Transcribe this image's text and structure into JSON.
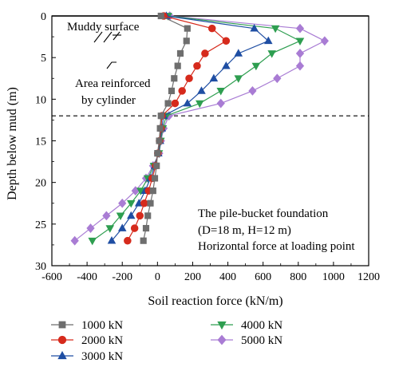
{
  "chart_data": {
    "type": "line",
    "xlabel": "Soil reaction force (kN/m)",
    "ylabel": "Depth below mud (m)",
    "xlim": [
      -600,
      1200
    ],
    "ylim": [
      0,
      30
    ],
    "y_inverted": true,
    "grid": false,
    "x_ticks": [
      -600,
      -400,
      -200,
      0,
      200,
      400,
      600,
      800,
      1000,
      1200
    ],
    "y_ticks": [
      0,
      5,
      10,
      15,
      20,
      25,
      30
    ],
    "legend_position": "bottom",
    "annotations": {
      "muddy_surface": "Muddy surface",
      "reinforced_line1": "Area reinforced",
      "reinforced_line2": "by cylinder",
      "info_line1": "The pile-bucket foundation",
      "info_line2": "(D=18 m, H=12 m)",
      "info_line3": "Horizontal force at loading point"
    },
    "reference_lines": {
      "mud_surface_depth": 0,
      "bucket_bottom_depth": 12
    },
    "y": [
      0,
      1.5,
      3,
      4.5,
      6,
      7.5,
      9,
      10.5,
      12,
      13.5,
      15,
      16.5,
      18,
      19.5,
      21,
      22.5,
      24,
      25.5,
      27
    ],
    "series": [
      {
        "name": "1000 kN",
        "marker": "square",
        "color": "#6e6e6e",
        "x": [
          20,
          170,
          165,
          130,
          115,
          95,
          80,
          60,
          20,
          15,
          10,
          0,
          -5,
          -15,
          -25,
          -40,
          -55,
          -65,
          -80
        ]
      },
      {
        "name": "2000 kN",
        "marker": "circle",
        "color": "#d62a1c",
        "x": [
          35,
          310,
          390,
          270,
          225,
          180,
          140,
          100,
          25,
          20,
          12,
          2,
          -10,
          -30,
          -50,
          -75,
          -100,
          -130,
          -170
        ]
      },
      {
        "name": "3000 kN",
        "marker": "triangle-up",
        "color": "#1f4ea3",
        "x": [
          50,
          550,
          630,
          460,
          390,
          320,
          250,
          170,
          35,
          25,
          15,
          5,
          -15,
          -40,
          -70,
          -105,
          -150,
          -200,
          -260
        ]
      },
      {
        "name": "4000 kN",
        "marker": "triangle-down",
        "color": "#2e9e50",
        "x": [
          60,
          670,
          810,
          650,
          560,
          460,
          360,
          240,
          50,
          30,
          18,
          8,
          -20,
          -55,
          -95,
          -150,
          -210,
          -270,
          -370
        ]
      },
      {
        "name": "5000 kN",
        "marker": "diamond",
        "color": "#a97cd4",
        "x": [
          70,
          810,
          950,
          810,
          810,
          680,
          540,
          360,
          65,
          35,
          20,
          10,
          -25,
          -65,
          -125,
          -200,
          -290,
          -380,
          -470
        ]
      }
    ]
  }
}
